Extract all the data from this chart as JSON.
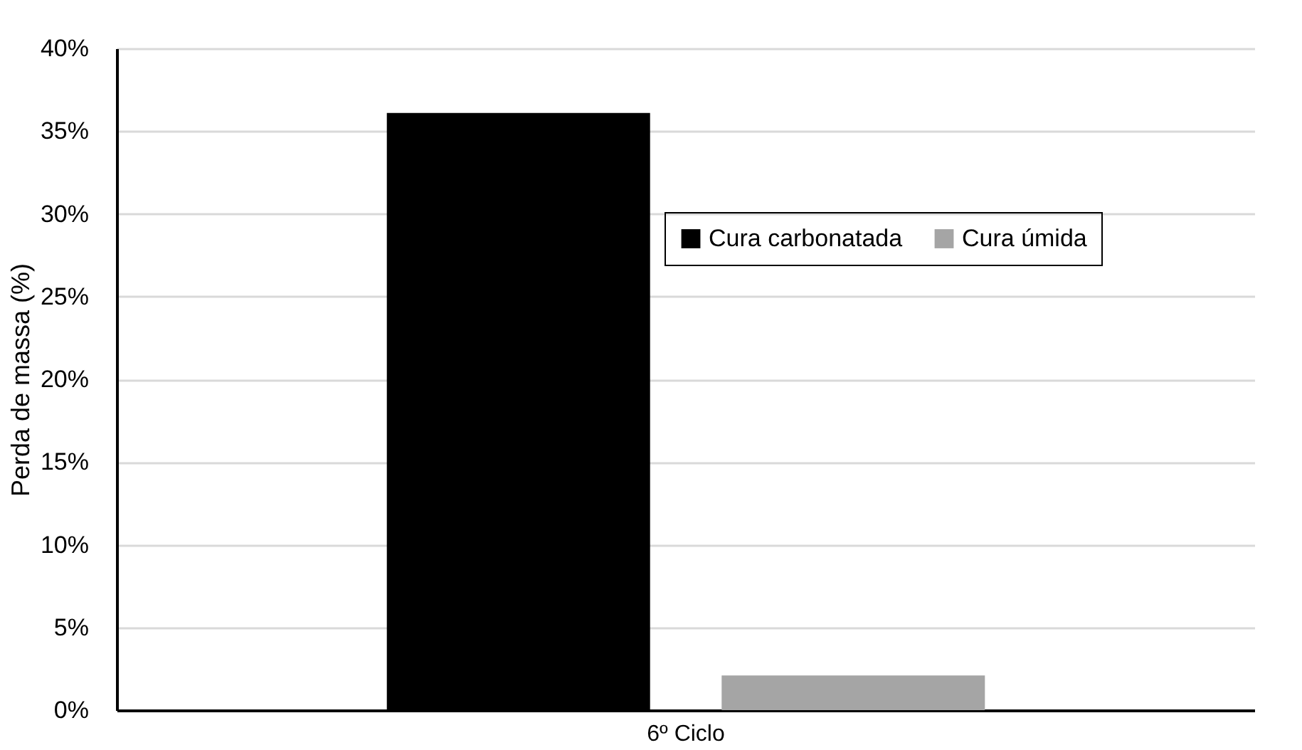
{
  "chart_data": {
    "type": "bar",
    "categories": [
      "6º Ciclo"
    ],
    "ylabel": "Perda de massa (%)",
    "series": [
      {
        "name": "Cura carbonatada",
        "color": "#000000",
        "values": [
          36.1
        ]
      },
      {
        "name": "Cura úmida",
        "color": "#a5a5a5",
        "values": [
          2.1
        ]
      }
    ],
    "ylim": [
      0,
      40
    ],
    "yticks": [
      {
        "value": 0,
        "label": "0%"
      },
      {
        "value": 5,
        "label": "5%"
      },
      {
        "value": 10,
        "label": "10%"
      },
      {
        "value": 15,
        "label": "15%"
      },
      {
        "value": 20,
        "label": "20%"
      },
      {
        "value": 25,
        "label": "25%"
      },
      {
        "value": 30,
        "label": "30%"
      },
      {
        "value": 35,
        "label": "35%"
      },
      {
        "value": 40,
        "label": "40%"
      }
    ],
    "grid": "y",
    "legend": "top right"
  }
}
